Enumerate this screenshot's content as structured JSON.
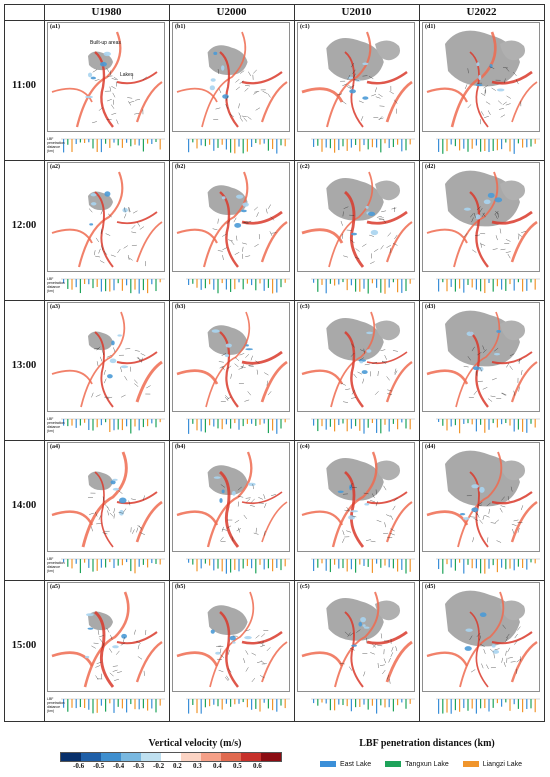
{
  "headers": [
    "U1980",
    "U2000",
    "U2010",
    "U2022"
  ],
  "rows": [
    {
      "time": "11:00",
      "labels": [
        "(a1)",
        "(b1)",
        "(c1)",
        "(d1)"
      ]
    },
    {
      "time": "12:00",
      "labels": [
        "(a2)",
        "(b2)",
        "(c2)",
        "(d2)"
      ]
    },
    {
      "time": "13:00",
      "labels": [
        "(a3)",
        "(b3)",
        "(c3)",
        "(d3)"
      ]
    },
    {
      "time": "14:00",
      "labels": [
        "(a4)",
        "(b4)",
        "(c4)",
        "(d4)"
      ]
    },
    {
      "time": "15:00",
      "labels": [
        "(a5)",
        "(b5)",
        "(c5)",
        "(d5)"
      ]
    }
  ],
  "annotations": {
    "builtup": "Built-up areas",
    "lakes": "Lakes"
  },
  "bar_axis_label": "LBF penetration distance (km)",
  "vv_legend": {
    "title": "Vertical velocity (m/s)",
    "ticks": [
      "-0.6",
      "-0.5",
      "-0.4",
      "-0.3",
      "-0.2",
      "0.2",
      "0.3",
      "0.4",
      "0.5",
      "0.6"
    ],
    "colors": [
      "#08306b",
      "#1f5fa8",
      "#3f8fcf",
      "#79b8e0",
      "#bfe0f0",
      "#ffffff",
      "#fcd4c4",
      "#f5a088",
      "#e06a50",
      "#c6302a",
      "#8b0c12"
    ]
  },
  "lbf_legend": {
    "title": "LBF penetration distances (km)",
    "items": [
      {
        "name": "East Lake",
        "color": "#3b8fd8"
      },
      {
        "name": "Tangxun Lake",
        "color": "#1ea35a"
      },
      {
        "name": "Liangzi Lake",
        "color": "#f0952c"
      }
    ]
  }
}
